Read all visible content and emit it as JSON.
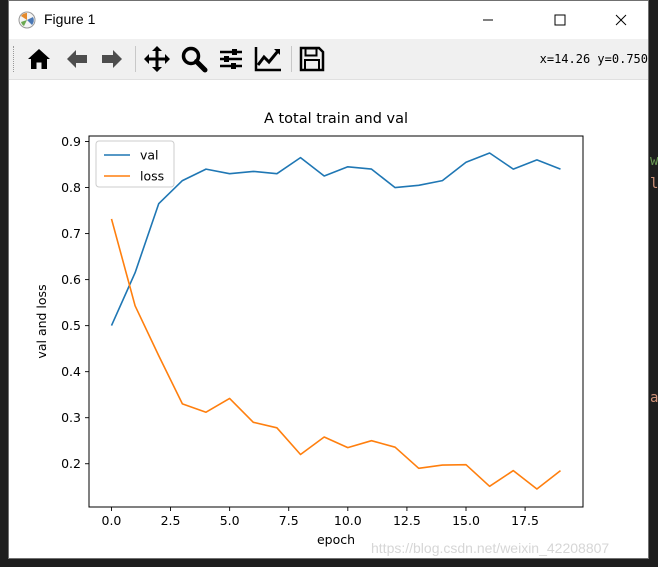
{
  "window": {
    "title": "Figure 1",
    "coords_readout": "x=14.26 y=0.750"
  },
  "toolbar": {
    "buttons": [
      "home-icon",
      "back-icon",
      "forward-icon",
      "pan-icon",
      "zoom-icon",
      "configure-subplots-icon",
      "edit-axis-icon",
      "save-icon"
    ]
  },
  "background": {
    "edge_chars": [
      "w",
      "l",
      "a"
    ]
  },
  "watermark": "https://blog.csdn.net/weixin_42208807",
  "colors": {
    "val": "#1f77b4",
    "loss": "#ff7f0e"
  },
  "chart_data": {
    "type": "line",
    "title": "A total train and val",
    "xlabel": "epoch",
    "ylabel": "val and loss",
    "xlim": [
      -0.95,
      19.95
    ],
    "ylim": [
      0.106,
      0.912
    ],
    "xticks": [
      0.0,
      2.5,
      5.0,
      7.5,
      10.0,
      12.5,
      15.0,
      17.5
    ],
    "xtick_labels": [
      "0.0",
      "2.5",
      "5.0",
      "7.5",
      "10.0",
      "12.5",
      "15.0",
      "17.5"
    ],
    "yticks": [
      0.2,
      0.3,
      0.4,
      0.5,
      0.6,
      0.7,
      0.8,
      0.9
    ],
    "ytick_labels": [
      "0.2",
      "0.3",
      "0.4",
      "0.5",
      "0.6",
      "0.7",
      "0.8",
      "0.9"
    ],
    "legend_position": "upper-left",
    "x": [
      0,
      1,
      2,
      3,
      4,
      5,
      6,
      7,
      8,
      9,
      10,
      11,
      12,
      13,
      14,
      15,
      16,
      17,
      18,
      19
    ],
    "series": [
      {
        "name": "val",
        "values": [
          0.5,
          0.615,
          0.765,
          0.815,
          0.84,
          0.83,
          0.835,
          0.83,
          0.865,
          0.825,
          0.845,
          0.84,
          0.8,
          0.805,
          0.815,
          0.855,
          0.875,
          0.84,
          0.86,
          0.84
        ]
      },
      {
        "name": "loss",
        "values": [
          0.732,
          0.543,
          0.435,
          0.33,
          0.312,
          0.342,
          0.29,
          0.278,
          0.22,
          0.258,
          0.235,
          0.25,
          0.236,
          0.19,
          0.197,
          0.198,
          0.151,
          0.185,
          0.145,
          0.185
        ]
      }
    ]
  }
}
